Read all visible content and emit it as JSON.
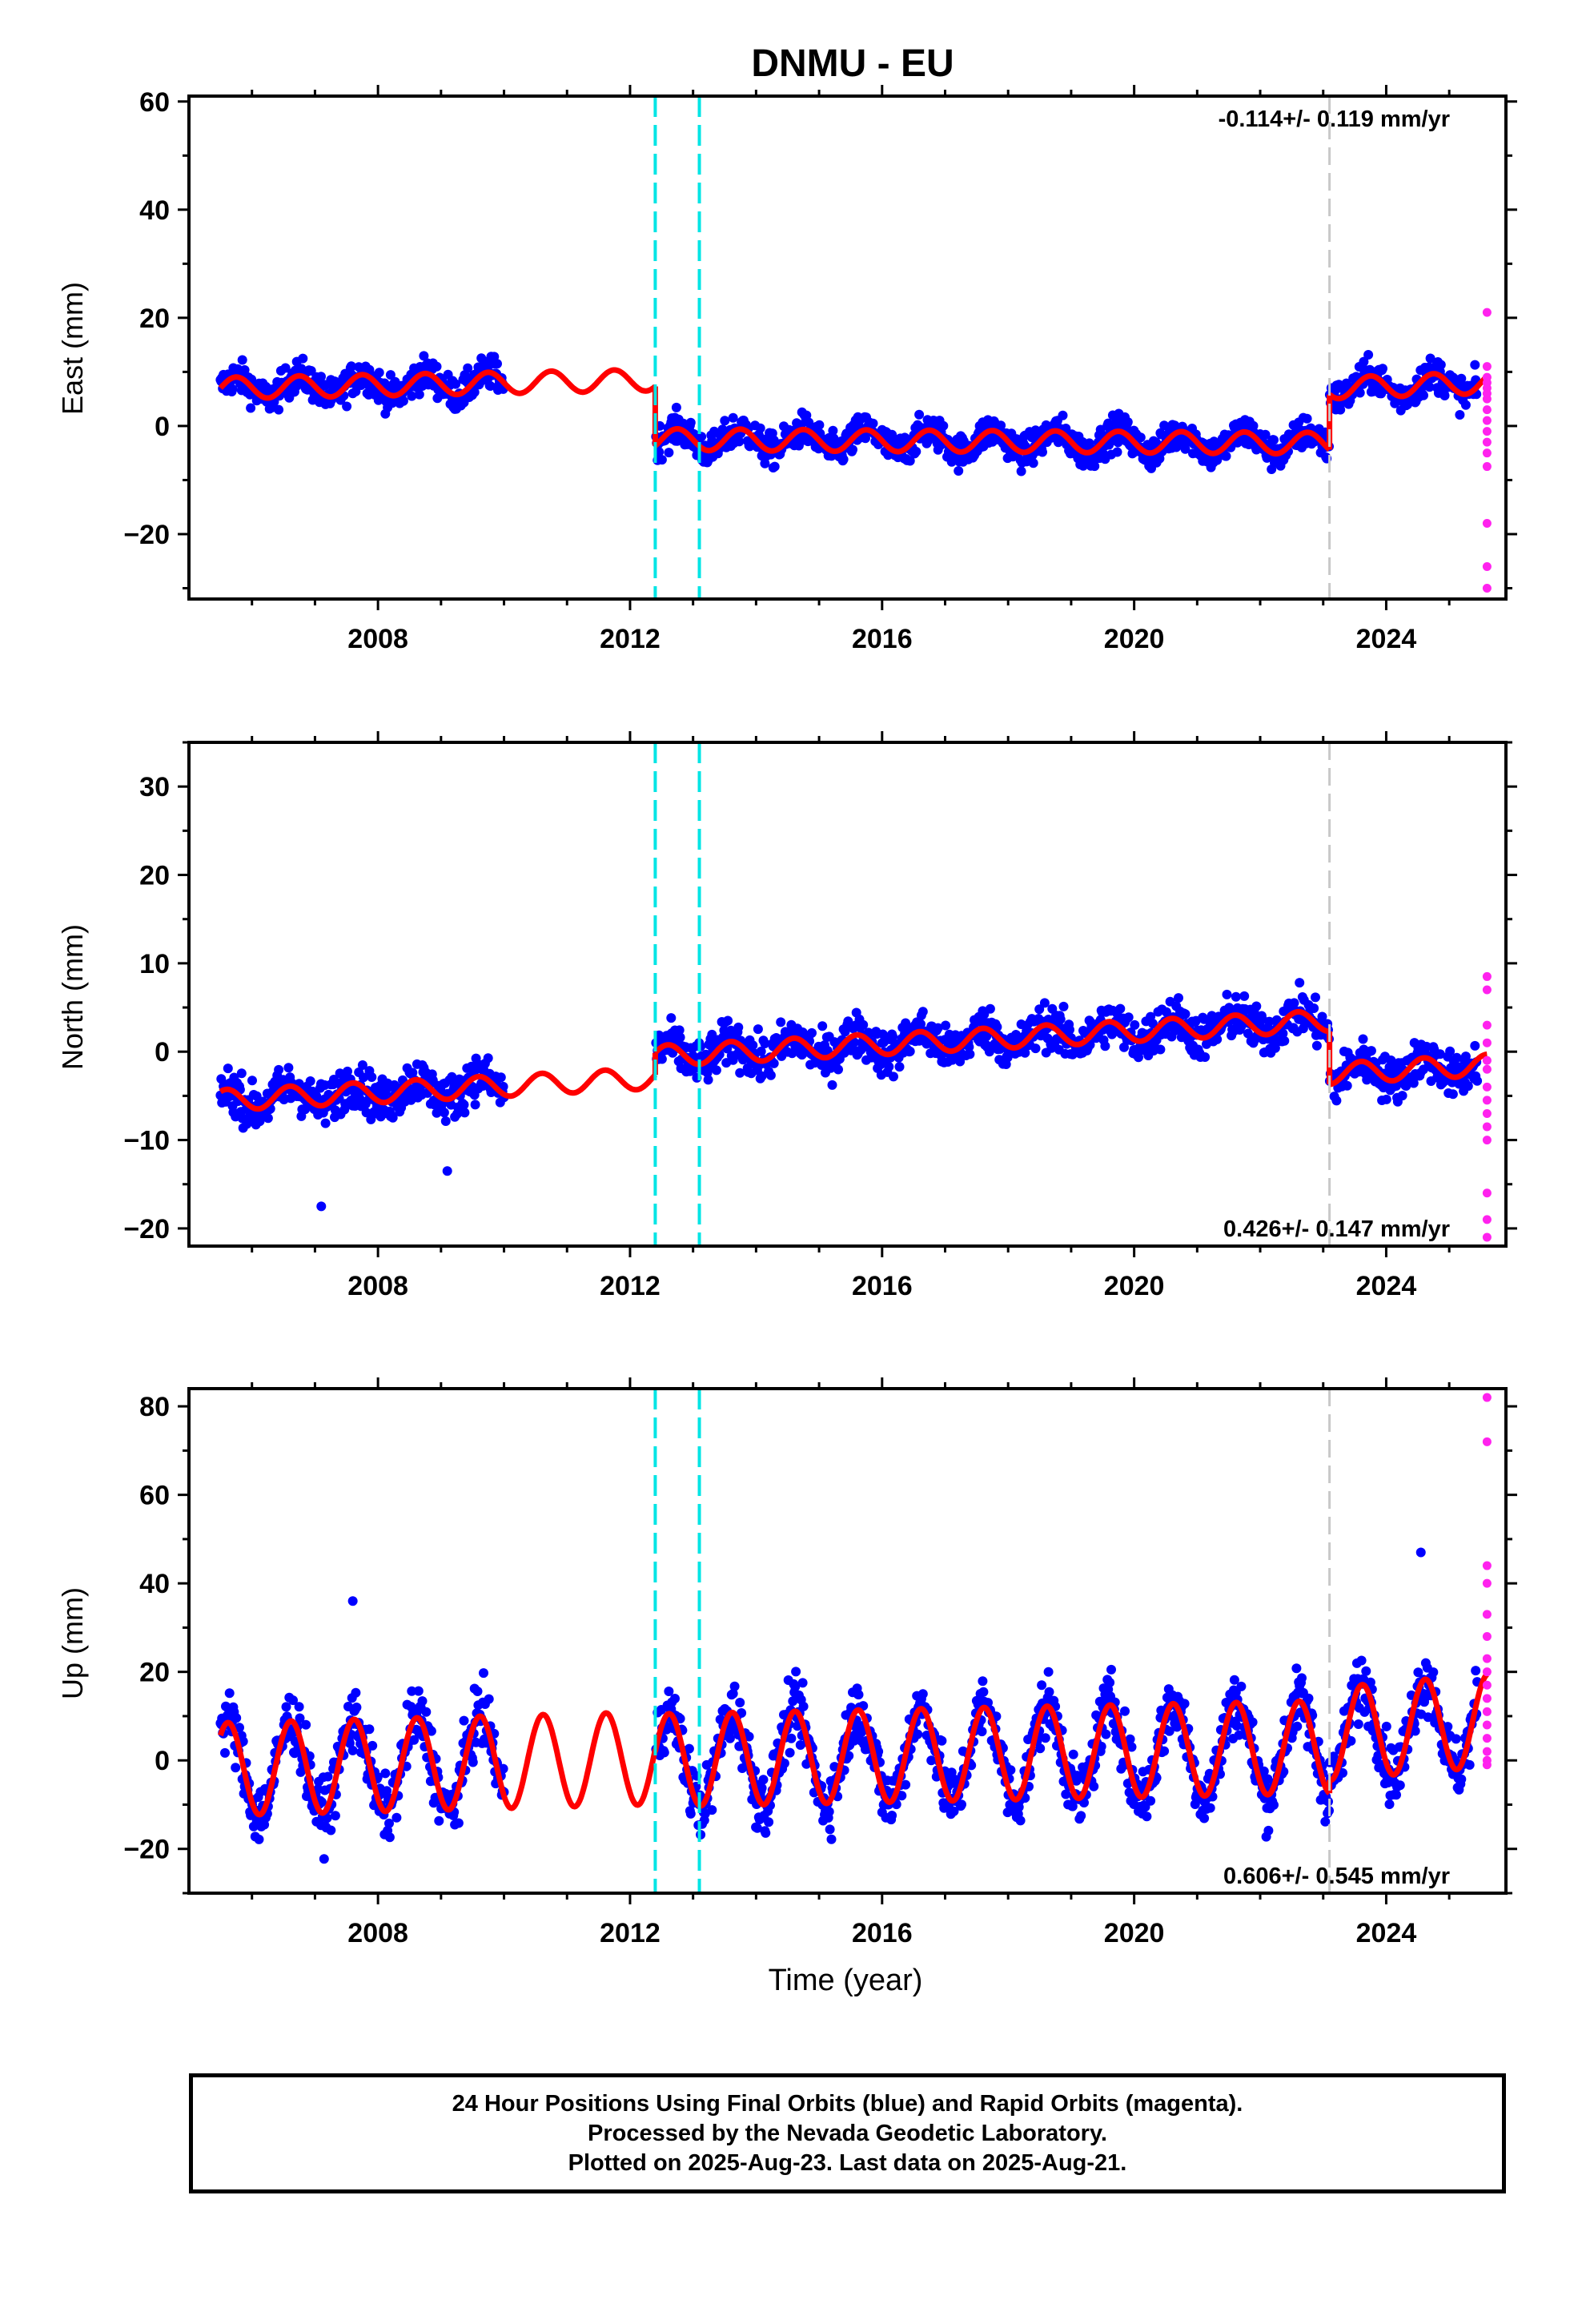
{
  "title": "DNMU - EU",
  "xlabel": "Time (year)",
  "caption": {
    "line1": "24 Hour Positions Using Final Orbits (blue) and Rapid Orbits (magenta).",
    "line2": "Processed by the Nevada Geodetic Laboratory.",
    "line3": "Plotted on 2025-Aug-23. Last data on 2025-Aug-21."
  },
  "colors": {
    "final_orbits": "#0000ff",
    "rapid_orbits": "#ff22ee",
    "model_fit": "#ff0000",
    "equipment_change": "#00e5e5",
    "other_offset": "#c8c8c8"
  },
  "chart_data": [
    {
      "type": "scatter",
      "component": "East",
      "ylabel": "East (mm)",
      "rate_label": "-0.114+/- 0.119 mm/yr",
      "rate_position": "top-right",
      "xlim": [
        2005.0,
        2025.9
      ],
      "ylim": [
        -32,
        61
      ],
      "xticks": [
        2008,
        2012,
        2016,
        2020,
        2024
      ],
      "yticks": [
        -20,
        0,
        20,
        40,
        60
      ],
      "grid": false,
      "vlines_cyan": [
        2012.4,
        2013.1
      ],
      "vlines_gray": [
        2023.1
      ],
      "final_orbits": {
        "start": 2005.5,
        "gap_start": 2010.0,
        "gap_end": 2012.4,
        "end": 2025.45,
        "scatter_mm": 2.2
      },
      "model": {
        "segments": [
          {
            "x": [
              2005.5,
              2012.4
            ],
            "y": [
              7.0,
              8.5
            ]
          },
          {
            "x": [
              2012.4,
              2023.1
            ],
            "y": [
              -2.5,
              -3.2
            ]
          },
          {
            "x": [
              2023.1,
              2025.6
            ],
            "y": [
              7.0,
              8.0
            ]
          }
        ],
        "annual_amplitude_mm": 2.0,
        "phase_peak_fraction": 0.75
      },
      "rapid_orbits": {
        "x": [
          2025.6,
          2025.6,
          2025.6,
          2025.6,
          2025.6,
          2025.6,
          2025.6,
          2025.6,
          2025.6,
          2025.6,
          2025.6,
          2025.6,
          2025.6,
          2025.6,
          2025.6,
          2025.6
        ],
        "y": [
          21,
          11,
          9,
          8,
          7,
          6,
          5,
          3,
          1,
          -1,
          -3,
          -5,
          -7.5,
          -18,
          -26,
          -30
        ]
      }
    },
    {
      "type": "scatter",
      "component": "North",
      "ylabel": "North (mm)",
      "rate_label": "0.426+/- 0.147 mm/yr",
      "rate_position": "bottom-right",
      "xlim": [
        2005.0,
        2025.9
      ],
      "ylim": [
        -22,
        35
      ],
      "xticks": [
        2008,
        2012,
        2016,
        2020,
        2024
      ],
      "yticks": [
        -20,
        -10,
        0,
        10,
        20,
        30
      ],
      "grid": false,
      "vlines_cyan": [
        2012.4,
        2013.1
      ],
      "vlines_gray": [
        2023.1
      ],
      "final_orbits": {
        "start": 2005.5,
        "gap_start": 2010.0,
        "gap_end": 2012.4,
        "end": 2025.45,
        "scatter_mm": 1.8
      },
      "outliers": {
        "x": [
          2007.1,
          2009.1
        ],
        "y": [
          -17.5,
          -13.5
        ]
      },
      "model": {
        "segments": [
          {
            "x": [
              2005.5,
              2012.4
            ],
            "y": [
              -5.5,
              -3.0
            ]
          },
          {
            "x": [
              2012.4,
              2023.1
            ],
            "y": [
              -0.5,
              3.5
            ]
          },
          {
            "x": [
              2023.1,
              2025.6
            ],
            "y": [
              -2.5,
              -1.5
            ]
          }
        ],
        "annual_amplitude_mm": 1.2,
        "phase_peak_fraction": 0.6
      },
      "rapid_orbits": {
        "x": [
          2025.6,
          2025.6,
          2025.6,
          2025.6,
          2025.6,
          2025.6,
          2025.6,
          2025.6,
          2025.6,
          2025.6,
          2025.6,
          2025.6,
          2025.6,
          2025.6
        ],
        "y": [
          8.5,
          7,
          3,
          1,
          -1,
          -2,
          -4,
          -5.5,
          -7,
          -8.5,
          -10,
          -16,
          -19,
          -21
        ]
      }
    },
    {
      "type": "scatter",
      "component": "Up",
      "ylabel": "Up (mm)",
      "rate_label": "0.606+/- 0.545 mm/yr",
      "rate_position": "bottom-right",
      "xlim": [
        2005.0,
        2025.9
      ],
      "ylim": [
        -30,
        84
      ],
      "xticks": [
        2008,
        2012,
        2016,
        2020,
        2024
      ],
      "yticks": [
        -20,
        0,
        20,
        40,
        60,
        80
      ],
      "grid": false,
      "vlines_cyan": [
        2012.4,
        2013.1
      ],
      "vlines_gray": [
        2023.1
      ],
      "final_orbits": {
        "start": 2005.5,
        "gap_start": 2010.0,
        "gap_end": 2012.4,
        "end": 2025.45,
        "scatter_mm": 5.0
      },
      "outliers": {
        "x": [
          2007.6,
          2024.55
        ],
        "y": [
          36,
          47
        ]
      },
      "model": {
        "segments": [
          {
            "x": [
              2005.5,
              2012.4
            ],
            "y": [
              -2.0,
              0.5
            ]
          },
          {
            "x": [
              2012.4,
              2023.1
            ],
            "y": [
              0.0,
              3.0
            ]
          },
          {
            "x": [
              2023.1,
              2025.6
            ],
            "y": [
              6.0,
              9.0
            ]
          }
        ],
        "annual_amplitude_mm": 10.5,
        "phase_peak_fraction": 0.62
      },
      "rapid_orbits": {
        "x": [
          2025.6,
          2025.6,
          2025.6,
          2025.6,
          2025.6,
          2025.6,
          2025.6,
          2025.6,
          2025.6,
          2025.6,
          2025.6,
          2025.6,
          2025.6,
          2025.6,
          2025.6,
          2025.6
        ],
        "y": [
          82,
          72,
          44,
          40,
          33,
          28,
          23,
          20,
          17,
          14,
          11,
          8,
          5,
          2,
          0,
          -1
        ]
      }
    }
  ]
}
